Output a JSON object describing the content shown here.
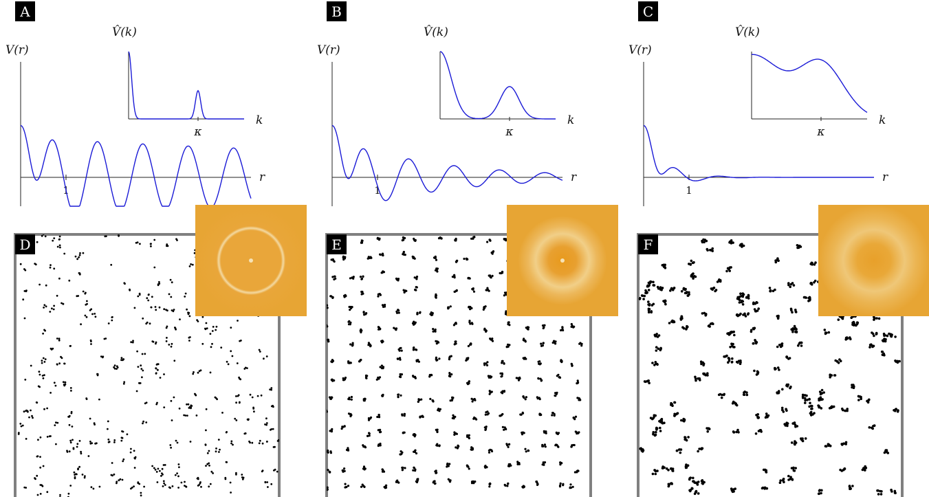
{
  "figure": {
    "panels": [
      {
        "letter": "A",
        "potential_label": "V(r)",
        "r_label": "r",
        "r_tick": "1",
        "fourier_label": "V̂(k)",
        "k_label": "k",
        "k_tick": "κ"
      },
      {
        "letter": "B",
        "potential_label": "V(r)",
        "r_label": "r",
        "r_tick": "1",
        "fourier_label": "V̂(k)",
        "k_label": "k",
        "k_tick": "κ"
      },
      {
        "letter": "C",
        "potential_label": "V(r)",
        "r_label": "r",
        "r_tick": "1",
        "fourier_label": "V̂(k)",
        "k_label": "k",
        "k_tick": "κ"
      }
    ],
    "configurations": [
      {
        "letter": "D",
        "structure": "dense scattered points",
        "inset": "sharp ring"
      },
      {
        "letter": "E",
        "structure": "dispersed small clusters",
        "inset": "broad ring"
      },
      {
        "letter": "F",
        "structure": "clustered aggregates",
        "inset": "diffuse ring"
      }
    ],
    "colors": {
      "curve": "#1a1ad6",
      "axis": "#222222",
      "frame": "#808080",
      "inset": "#e6a735"
    }
  },
  "chart_data": [
    {
      "type": "line",
      "title": "",
      "xlabel": "r",
      "ylabel": "V(r)",
      "x_ticks": [
        "1"
      ],
      "description_curve": "oscillating, slowly decaying",
      "decay": 0.05,
      "fourier": {
        "xlabel": "k",
        "ylabel": "V̂(k)",
        "x_ticks": [
          "κ"
        ],
        "peak_at": "κ",
        "peak_width": "narrow"
      }
    },
    {
      "type": "line",
      "title": "",
      "xlabel": "r",
      "ylabel": "V(r)",
      "x_ticks": [
        "1"
      ],
      "description_curve": "oscillating, moderately decaying",
      "decay": 0.35,
      "fourier": {
        "xlabel": "k",
        "ylabel": "V̂(k)",
        "x_ticks": [
          "κ"
        ],
        "peak_at": "κ",
        "peak_width": "medium"
      }
    },
    {
      "type": "line",
      "title": "",
      "xlabel": "r",
      "ylabel": "V(r)",
      "x_ticks": [
        "1"
      ],
      "description_curve": "rapidly decaying",
      "decay": 1.6,
      "fourier": {
        "xlabel": "k",
        "ylabel": "V̂(k)",
        "x_ticks": [
          "κ"
        ],
        "peak_at": "κ",
        "peak_width": "wide"
      }
    }
  ]
}
